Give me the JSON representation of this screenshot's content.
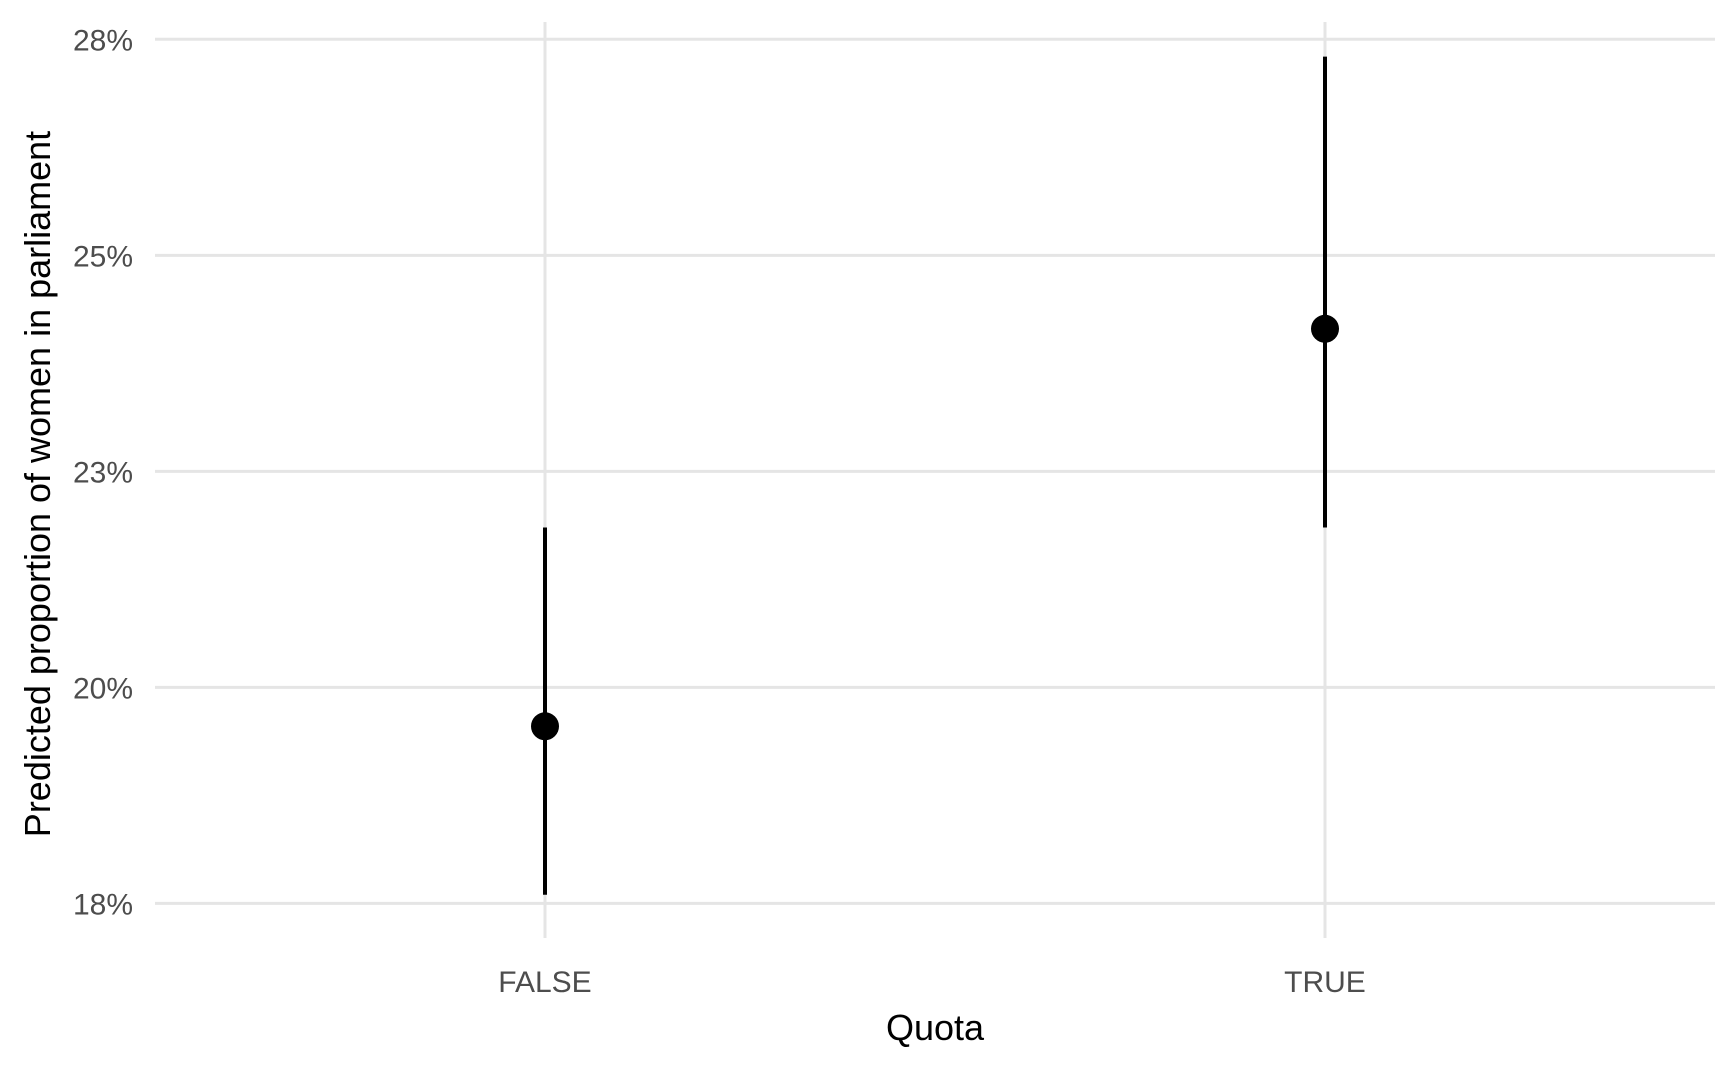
{
  "chart_data": {
    "type": "scatter",
    "subtype": "pointrange",
    "title": "",
    "xlabel": "Quota",
    "ylabel": "Predicted proportion of women in parliament",
    "categories": [
      "FALSE",
      "TRUE"
    ],
    "points": [
      {
        "category": "FALSE",
        "estimate": 19.55,
        "lower": 17.6,
        "upper": 21.85
      },
      {
        "category": "TRUE",
        "estimate": 24.15,
        "lower": 21.85,
        "upper": 27.3
      }
    ],
    "y_ticks": [
      {
        "value": 17.5,
        "label": "18%"
      },
      {
        "value": 20,
        "label": "20%"
      },
      {
        "value": 22.5,
        "label": "23%"
      },
      {
        "value": 25,
        "label": "25%"
      },
      {
        "value": 27.5,
        "label": "28%"
      }
    ],
    "ylim": [
      17.1,
      27.7
    ],
    "grid": true,
    "legend": "none",
    "colors": {
      "point": "#000000",
      "grid": "#e5e5e5",
      "tick_text": "#4d4d4d",
      "axis_title": "#000000"
    }
  }
}
